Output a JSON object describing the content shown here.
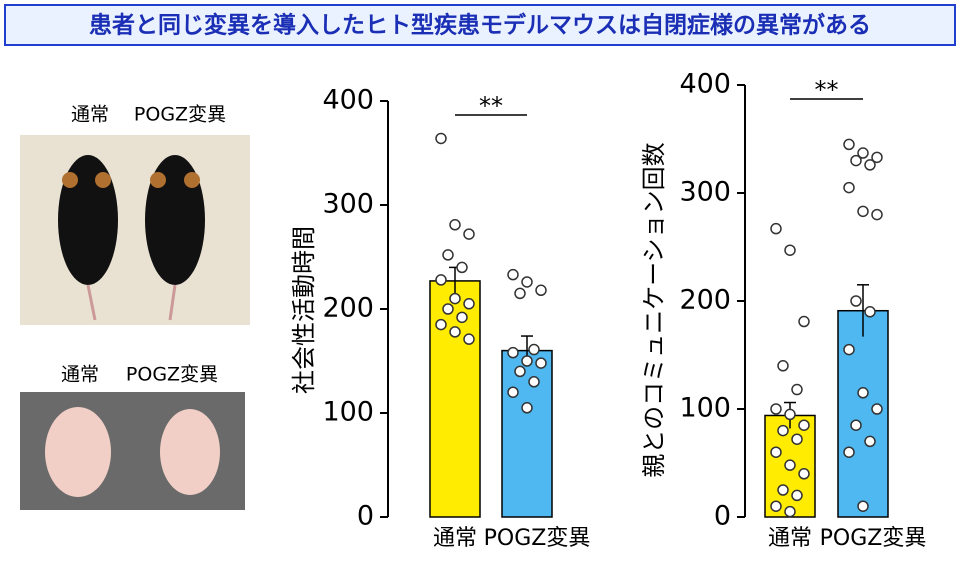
{
  "header": {
    "title": "患者と同じ変異を導入したヒト型疾患モデルマウスは自閉症様の異常がある"
  },
  "photos": [
    {
      "labels": [
        "通常",
        "POGZ変異"
      ]
    },
    {
      "labels": [
        "通常",
        "POGZ変異"
      ]
    }
  ],
  "chart_data": [
    {
      "type": "bar",
      "ylabel": "社会性活動時間",
      "categories": [
        "通常",
        "POGZ変異"
      ],
      "values": [
        227,
        160
      ],
      "errors": [
        13,
        14
      ],
      "colors": [
        "#ffec00",
        "#4fb8f0"
      ],
      "points": [
        [
          364,
          281,
          272,
          252,
          240,
          228,
          210,
          205,
          200,
          192,
          185,
          178,
          171
        ],
        [
          233,
          226,
          218,
          215,
          161,
          158,
          150,
          148,
          140,
          130,
          120,
          105
        ]
      ],
      "annotation": "**",
      "ylim": [
        0,
        400
      ],
      "yticks": [
        0,
        100,
        200,
        300,
        400
      ]
    },
    {
      "type": "bar",
      "ylabel": "親とのコミュニケーション回数",
      "categories": [
        "通常",
        "POGZ変異"
      ],
      "values": [
        94,
        191
      ],
      "errors": [
        12,
        24
      ],
      "colors": [
        "#ffec00",
        "#4fb8f0"
      ],
      "points": [
        [
          267,
          247,
          181,
          140,
          118,
          100,
          95,
          85,
          80,
          72,
          60,
          48,
          40,
          25,
          20,
          10,
          5
        ],
        [
          345,
          337,
          333,
          330,
          326,
          305,
          283,
          280,
          200,
          190,
          155,
          115,
          100,
          85,
          70,
          60,
          10
        ]
      ],
      "annotation": "**",
      "ylim": [
        0,
        400
      ],
      "yticks": [
        0,
        100,
        200,
        300,
        400
      ]
    }
  ]
}
